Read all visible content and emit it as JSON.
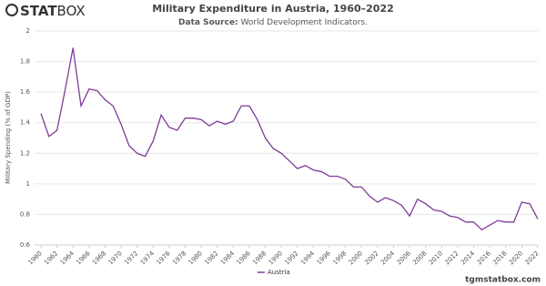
{
  "logo": {
    "bold": "STAT",
    "light": "BOX"
  },
  "footer": "tgmstatbox.com",
  "chart_data": {
    "type": "line",
    "title": "Military Expenditure in Austria, 1960–2022",
    "source_label": "Data Source:",
    "source": "World Development Indicators.",
    "ylabel": "Military Spending (% of GDP)",
    "x": [
      1960,
      1961,
      1962,
      1963,
      1964,
      1965,
      1966,
      1967,
      1968,
      1969,
      1970,
      1971,
      1972,
      1973,
      1974,
      1975,
      1976,
      1977,
      1978,
      1979,
      1980,
      1981,
      1982,
      1983,
      1984,
      1985,
      1986,
      1987,
      1988,
      1989,
      1990,
      1991,
      1992,
      1993,
      1994,
      1995,
      1996,
      1997,
      1998,
      1999,
      2000,
      2001,
      2002,
      2003,
      2004,
      2005,
      2006,
      2007,
      2008,
      2009,
      2010,
      2011,
      2012,
      2013,
      2014,
      2015,
      2016,
      2017,
      2018,
      2019,
      2020,
      2021,
      2022
    ],
    "series": [
      {
        "name": "Austria",
        "color": "#7d3c98",
        "values": [
          1.46,
          1.31,
          1.35,
          1.61,
          1.89,
          1.51,
          1.62,
          1.61,
          1.55,
          1.51,
          1.39,
          1.25,
          1.2,
          1.18,
          1.28,
          1.45,
          1.37,
          1.35,
          1.43,
          1.43,
          1.42,
          1.38,
          1.41,
          1.39,
          1.41,
          1.51,
          1.51,
          1.42,
          1.3,
          1.23,
          1.2,
          1.15,
          1.1,
          1.12,
          1.09,
          1.08,
          1.05,
          1.05,
          1.03,
          0.98,
          0.98,
          0.92,
          0.88,
          0.91,
          0.89,
          0.86,
          0.79,
          0.9,
          0.87,
          0.83,
          0.82,
          0.79,
          0.78,
          0.75,
          0.75,
          0.7,
          0.73,
          0.76,
          0.75,
          0.75,
          0.88,
          0.87,
          0.77
        ]
      }
    ],
    "xlim": [
      1960,
      2022
    ],
    "xticks": [
      1960,
      1962,
      1964,
      1966,
      1968,
      1970,
      1972,
      1974,
      1976,
      1978,
      1980,
      1982,
      1984,
      1986,
      1988,
      1990,
      1992,
      1994,
      1996,
      1998,
      2000,
      2002,
      2004,
      2006,
      2008,
      2010,
      2012,
      2014,
      2016,
      2018,
      2020,
      2022
    ],
    "ylim": [
      0.6,
      2
    ],
    "yticks": [
      0.6,
      0.8,
      1,
      1.2,
      1.4,
      1.6,
      1.8,
      2
    ],
    "grid": true
  }
}
